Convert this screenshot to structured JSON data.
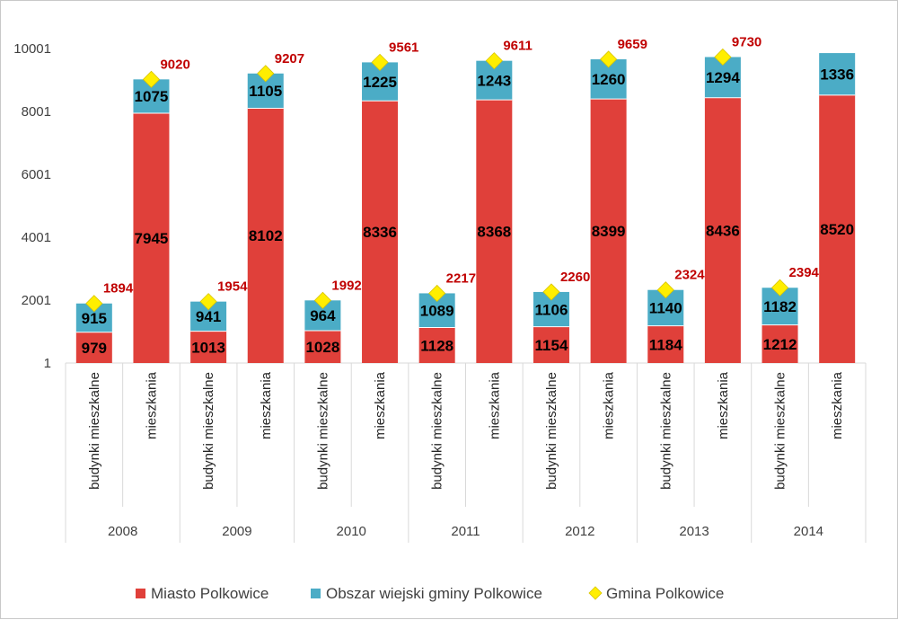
{
  "chart_data": {
    "type": "bar",
    "stacked": true,
    "groups": [
      "2008",
      "2009",
      "2010",
      "2011",
      "2012",
      "2013",
      "2014"
    ],
    "group_categories": [
      "budynki mieszkalne",
      "mieszkania"
    ],
    "series": [
      {
        "name": "Miasto Polkowice",
        "color": "#e0403a",
        "values": [
          979,
          7945,
          1013,
          8102,
          1028,
          8336,
          1128,
          8368,
          1154,
          8399,
          1184,
          8436,
          1212,
          8520
        ]
      },
      {
        "name": "Obszar wiejski gminy Polkowice",
        "color": "#4bacc6",
        "values": [
          915,
          1075,
          941,
          1105,
          964,
          1225,
          1089,
          1243,
          1106,
          1260,
          1140,
          1294,
          1182,
          1336
        ]
      },
      {
        "name": "Gmina Polkowice",
        "type": "scatter",
        "marker": "diamond",
        "color": "#ffee00",
        "values": [
          1894,
          9020,
          1954,
          9207,
          1992,
          9561,
          2217,
          9611,
          2260,
          9659,
          2324,
          9730,
          2394,
          null
        ]
      }
    ],
    "yticks": [
      "1",
      "2001",
      "4001",
      "6001",
      "8001",
      "10001"
    ],
    "ylim": [
      1,
      10001
    ],
    "grid": false,
    "legend": "bottom"
  }
}
